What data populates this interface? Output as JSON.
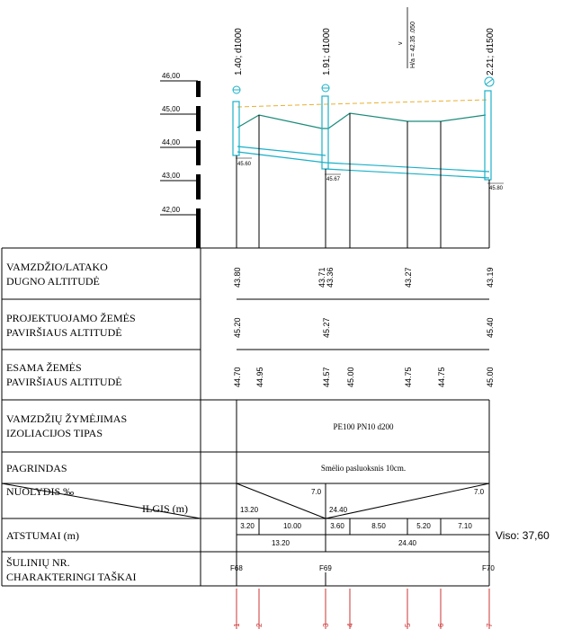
{
  "levels": {
    "ticks": [
      "46,00",
      "45,00",
      "44,00",
      "43,00",
      "42,00"
    ]
  },
  "pipes": {
    "segment1": "1.40; d1000",
    "segment2": "1.91; d1000",
    "segment3": "2.21; d1500",
    "speed_v": "v",
    "speed_h": "H/a = 42.35 .050"
  },
  "markers": {
    "m1": "45.60",
    "m2": "45.67",
    "m3": "45.80"
  },
  "rows": {
    "row1_line1": "VAMZDŽIO/LATAKO",
    "row1_line2": "DUGNO ALTITUDĖ",
    "row2_line1": "PROJEKTUOJAMO ŽEMĖS",
    "row2_line2": "PAVIRŠIAUS ALTITUDĖ",
    "row3_line1": "ESAMA ŽEMĖS",
    "row3_line2": "PAVIRŠIAUS ALTITUDĖ",
    "row4_line1": "VAMZDŽIŲ ŽYMĖJIMAS",
    "row4_line2": "IZOLIACIJOS TIPAS",
    "row5": "PAGRINDAS",
    "row6a": "NUOLYDIS ‰",
    "row6b": "ILGIS (m)",
    "row7": "ATSTUMAI (m)",
    "row8_line1": "ŠULINIŲ NR.",
    "row8_line2": "CHARAKTERINGI TAŠKAI"
  },
  "bottom_altitudes": {
    "v1": "43.80",
    "v2a": "43.71",
    "v2b": "43.36",
    "v3": "43.27",
    "v4": "43.19"
  },
  "design_altitudes": {
    "v1": "45.20",
    "v2": "45.27",
    "v3": "45.40"
  },
  "existing_altitudes": {
    "v1": "44.70",
    "v2": "44.95",
    "v3": "44.57",
    "v4": "45.00",
    "v5": "44.75",
    "v6": "44.75",
    "v7": "45.00"
  },
  "pipe_spec": "PE100 PN10 d200",
  "foundation": "Smėlio pasluoksnis 10cm.",
  "slopes": {
    "s1_slope": "7.0",
    "s1_length": "13.20",
    "s2_slope": "7.0",
    "s2_length": "24.40"
  },
  "distances": {
    "d1": "3.20",
    "d2": "10.00",
    "d3": "3.60",
    "d4": "8.50",
    "d5": "5.20",
    "d6": "7.10",
    "total1": "13.20",
    "total2": "24.40",
    "viso": "Viso:  37,60"
  },
  "wells": {
    "w1": "F68",
    "w2": "F69",
    "w3": "F70"
  },
  "points": [
    "1",
    "2",
    "3",
    "4",
    "5",
    "6",
    "7"
  ],
  "colors": {
    "ground_line": "#1a8a7a",
    "pipe": "#1ab0c8",
    "design_dashed": "#e8b030",
    "point_marker": "#cc3333"
  }
}
